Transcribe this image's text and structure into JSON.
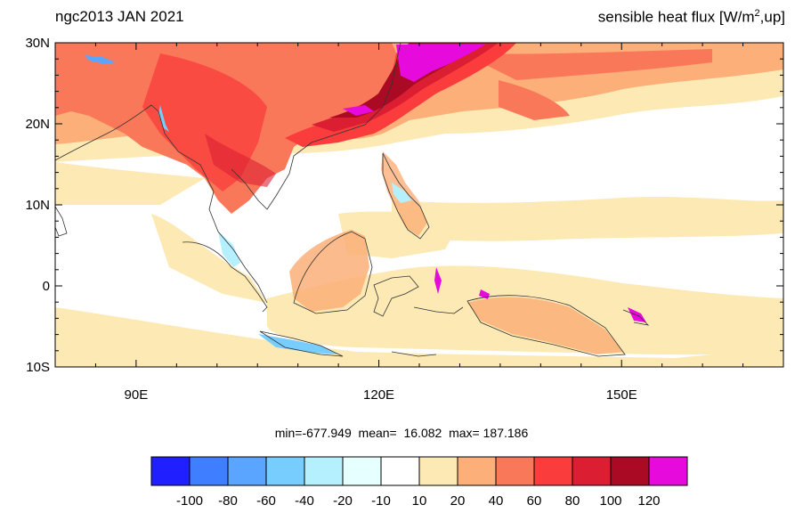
{
  "title_left": "ngc2013 JAN 2021",
  "title_right": {
    "main": "sensible heat flux [W/m",
    "sup": "2",
    "tail": ",up]"
  },
  "map": {
    "lon_range": [
      80,
      170
    ],
    "lat_range": [
      -10,
      30
    ],
    "lat_ticks": [
      {
        "value": 30,
        "label": "30N"
      },
      {
        "value": 20,
        "label": "20N"
      },
      {
        "value": 10,
        "label": "10N"
      },
      {
        "value": 0,
        "label": "0"
      },
      {
        "value": -10,
        "label": "10S"
      }
    ],
    "lon_ticks": [
      {
        "value": 90,
        "label": "90E"
      },
      {
        "value": 120,
        "label": "120E"
      },
      {
        "value": 150,
        "label": "150E"
      }
    ]
  },
  "stats": "min=-677.949  mean=  16.082  max= 187.186",
  "colorbar": {
    "colors": [
      "#1f1fff",
      "#3f7fff",
      "#5aa5ff",
      "#78cdff",
      "#b4f0ff",
      "#e6ffff",
      "#ffffff",
      "#fde9b4",
      "#fcaf78",
      "#fa785a",
      "#fa3c3c",
      "#dc1e32",
      "#aa0a23",
      "#e60adc"
    ],
    "labels": [
      "-100",
      "-80",
      "-60",
      "-40",
      "-20",
      "-10",
      "10",
      "20",
      "40",
      "60",
      "80",
      "100",
      "120"
    ]
  }
}
